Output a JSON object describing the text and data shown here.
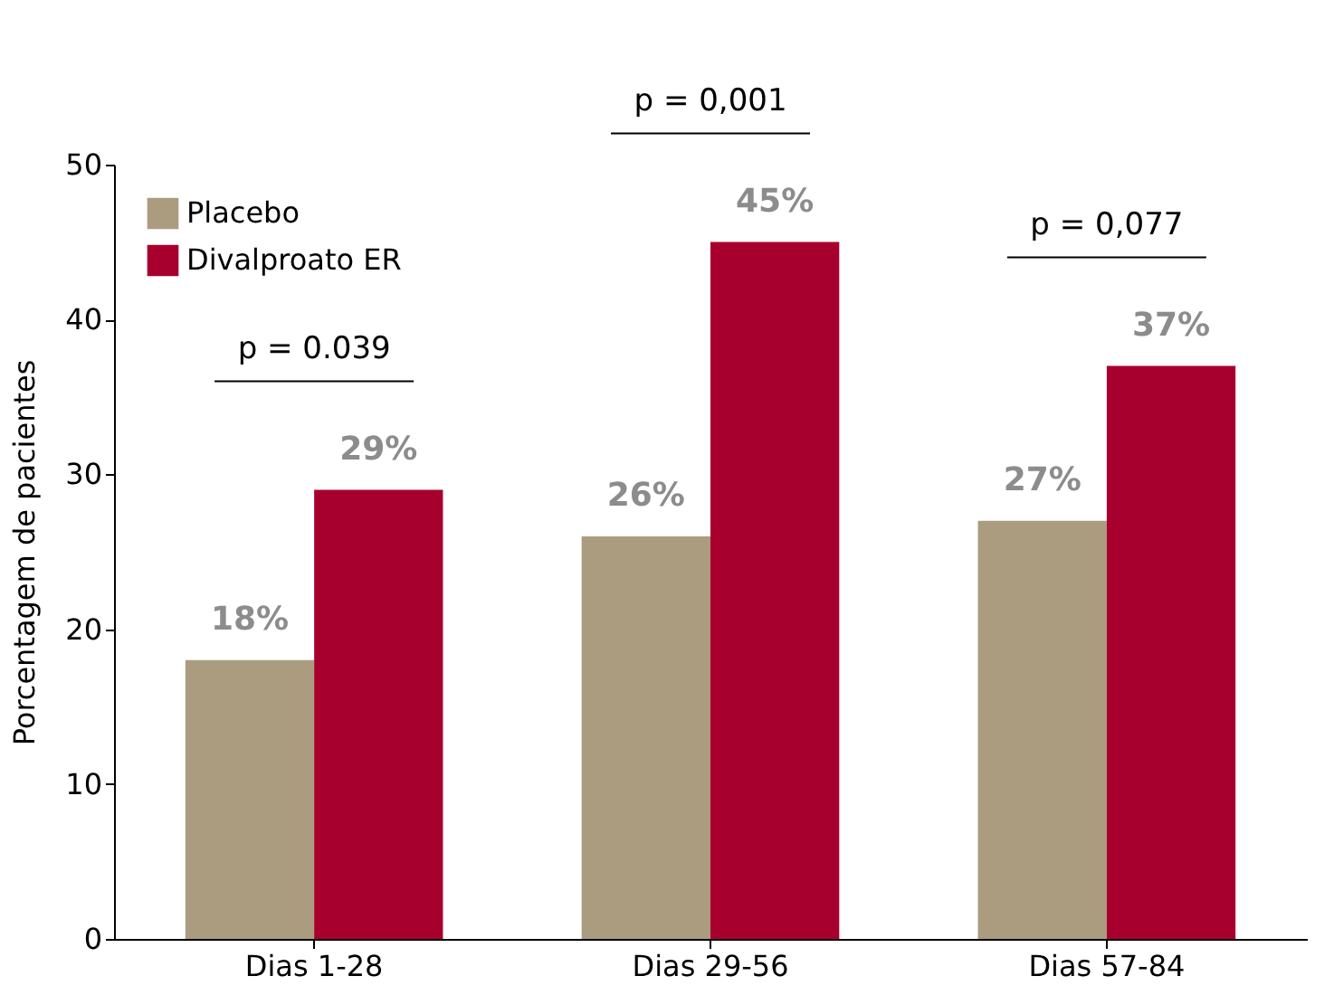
{
  "chart_data": {
    "type": "bar",
    "ylabel": "Porcentagem de pacientes",
    "categories": [
      "Dias 1-28",
      "Dias 29-56",
      "Dias 57-84"
    ],
    "series": [
      {
        "name": "Placebo",
        "color": "#ab9c80",
        "values": [
          18,
          26,
          27
        ],
        "value_labels": [
          "18%",
          "26%",
          "27%"
        ]
      },
      {
        "name": "Divalproato ER",
        "color": "#a8002e",
        "values": [
          29,
          45,
          37
        ],
        "value_labels": [
          "29%",
          "45%",
          "37%"
        ]
      }
    ],
    "ylim": [
      0,
      50
    ],
    "yticks": [
      0,
      10,
      20,
      30,
      40,
      50
    ],
    "grid": false,
    "legend": "top left",
    "annotations": [
      "p = 0.039",
      "p = 0,001",
      "p = 0,077"
    ]
  }
}
